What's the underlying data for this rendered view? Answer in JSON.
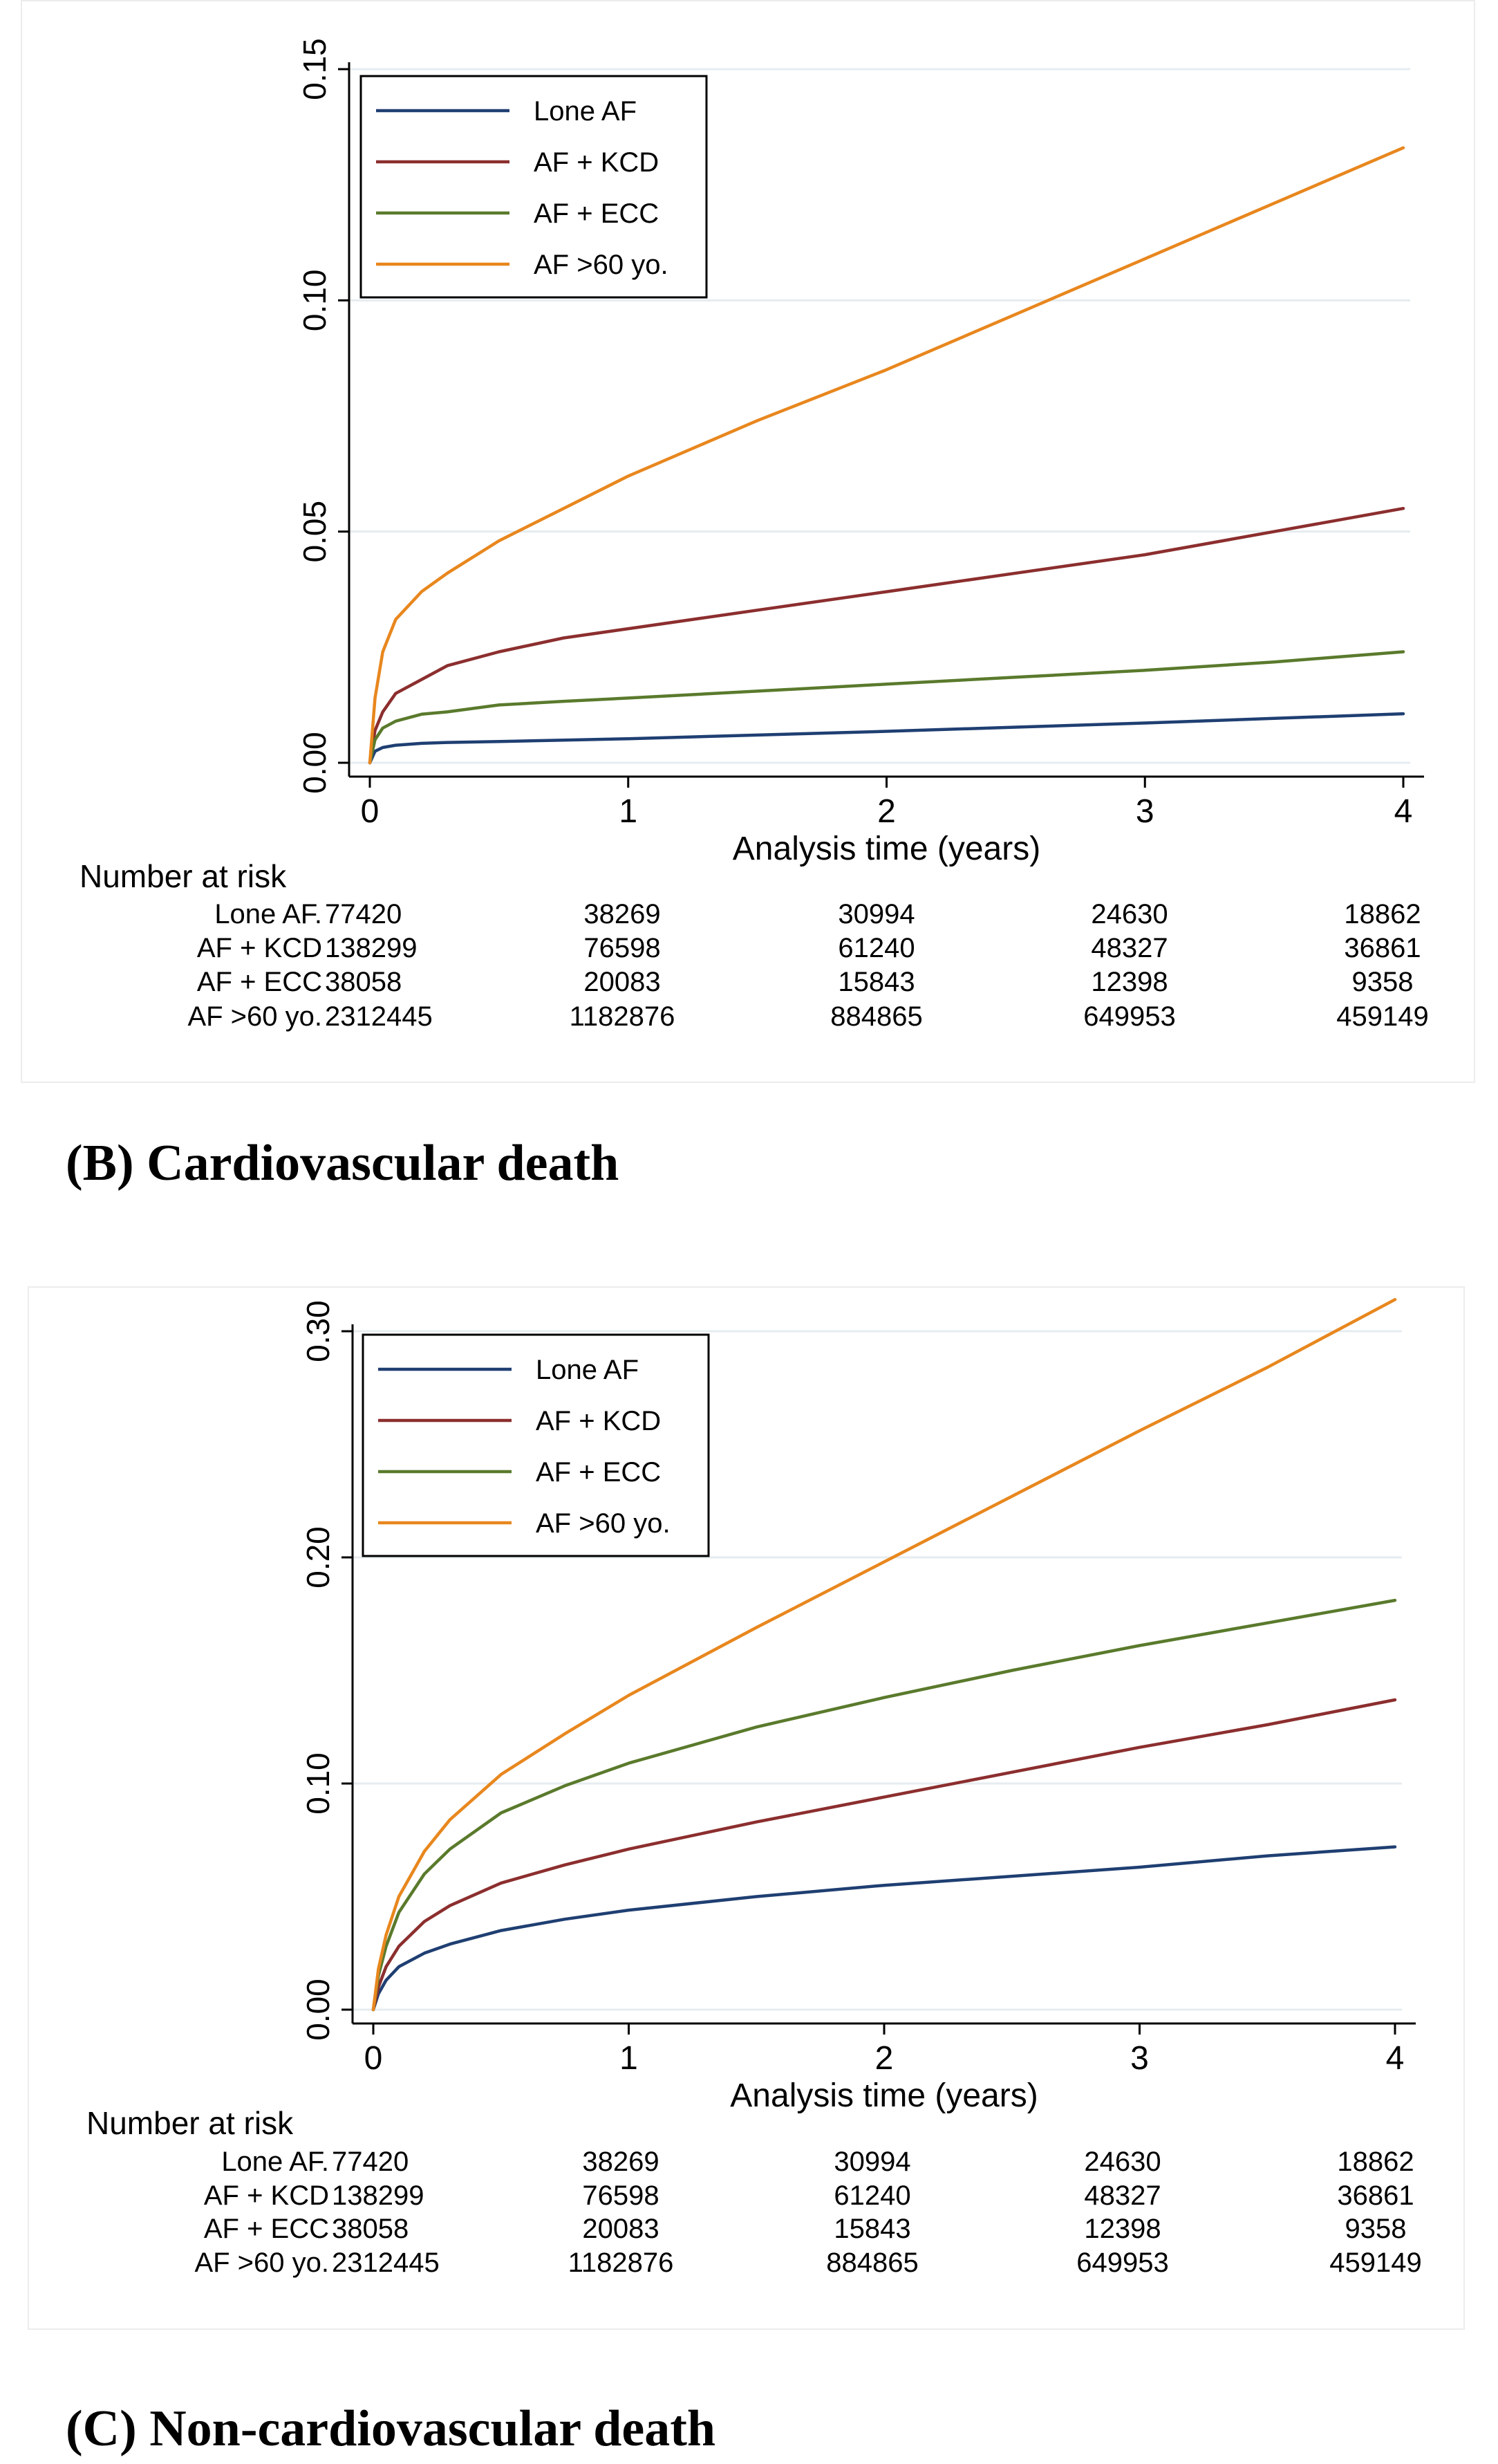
{
  "panels": [
    {
      "id": "cardiovascular",
      "caption": "(B) Cardiovascular death",
      "chart_data": {
        "type": "line",
        "title": "",
        "xlabel": "Analysis time (years)",
        "ylabel": "",
        "xlim": [
          0,
          4
        ],
        "ylim": [
          0,
          0.15
        ],
        "xticks": [
          0,
          1,
          2,
          3,
          4
        ],
        "xtick_labels": [
          "0",
          "1",
          "2",
          "3",
          "4"
        ],
        "yticks": [
          0,
          0.05,
          0.1,
          0.15
        ],
        "ytick_labels": [
          "0.00",
          "0.05",
          "0.10",
          "0.15"
        ],
        "grid": true,
        "legend": "top-left",
        "series": [
          {
            "name": "Lone AF",
            "color": "#1f3f72",
            "x": [
              0,
              0.02,
              0.05,
              0.1,
              0.2,
              0.3,
              0.5,
              0.75,
              1,
              1.5,
              2,
              2.5,
              3,
              3.5,
              4
            ],
            "values": [
              0,
              0.0025,
              0.0033,
              0.0038,
              0.0042,
              0.0044,
              0.0046,
              0.0049,
              0.0052,
              0.006,
              0.0068,
              0.0077,
              0.0086,
              0.0096,
              0.0106
            ]
          },
          {
            "name": "AF + KCD",
            "color": "#8c2e2e",
            "x": [
              0,
              0.02,
              0.05,
              0.1,
              0.2,
              0.3,
              0.5,
              0.75,
              1,
              1.5,
              2,
              2.5,
              3,
              3.5,
              4
            ],
            "values": [
              0,
              0.007,
              0.011,
              0.015,
              0.018,
              0.021,
              0.024,
              0.027,
              0.029,
              0.033,
              0.037,
              0.041,
              0.045,
              0.05,
              0.055
            ]
          },
          {
            "name": "AF + ECC",
            "color": "#5a7a2c",
            "x": [
              0,
              0.02,
              0.05,
              0.1,
              0.2,
              0.3,
              0.5,
              0.75,
              1,
              1.5,
              2,
              2.5,
              3,
              3.5,
              4
            ],
            "values": [
              0,
              0.005,
              0.0075,
              0.009,
              0.0105,
              0.011,
              0.0125,
              0.0133,
              0.014,
              0.0155,
              0.017,
              0.0185,
              0.02,
              0.0218,
              0.024
            ]
          },
          {
            "name": "AF >60 yo.",
            "color": "#e8871e",
            "x": [
              0,
              0.02,
              0.05,
              0.1,
              0.2,
              0.3,
              0.5,
              0.75,
              1,
              1.5,
              2,
              2.5,
              3,
              3.5,
              4
            ],
            "values": [
              0,
              0.014,
              0.024,
              0.031,
              0.037,
              0.041,
              0.048,
              0.055,
              0.062,
              0.074,
              0.085,
              0.097,
              0.109,
              0.121,
              0.133
            ]
          }
        ]
      },
      "risk_table": {
        "title": "Number at risk",
        "rows": [
          {
            "label": "Lone AF.",
            "values": [
              "77420",
              "38269",
              "30994",
              "24630",
              "18862"
            ]
          },
          {
            "label": "AF + KCD",
            "values": [
              "138299",
              "76598",
              "61240",
              "48327",
              "36861"
            ]
          },
          {
            "label": "AF + ECC",
            "values": [
              "38058",
              "20083",
              "15843",
              "12398",
              "9358"
            ]
          },
          {
            "label": "AF >60 yo.",
            "values": [
              "2312445",
              "1182876",
              "884865",
              "649953",
              "459149"
            ]
          }
        ]
      }
    },
    {
      "id": "noncardiovascular",
      "caption": "(C) Non-cardiovascular death",
      "chart_data": {
        "type": "line",
        "title": "",
        "xlabel": "Analysis time (years)",
        "ylabel": "",
        "xlim": [
          0,
          4
        ],
        "ylim": [
          0,
          0.3
        ],
        "xticks": [
          0,
          1,
          2,
          3,
          4
        ],
        "xtick_labels": [
          "0",
          "1",
          "2",
          "3",
          "4"
        ],
        "yticks": [
          0,
          0.1,
          0.2,
          0.3
        ],
        "ytick_labels": [
          "0.00",
          "0.10",
          "0.20",
          "0.30"
        ],
        "grid": true,
        "legend": "top-left",
        "series": [
          {
            "name": "Lone AF",
            "color": "#1f3f72",
            "x": [
              0,
              0.02,
              0.05,
              0.1,
              0.2,
              0.3,
              0.5,
              0.75,
              1,
              1.5,
              2,
              2.5,
              3,
              3.5,
              4
            ],
            "values": [
              0,
              0.007,
              0.013,
              0.019,
              0.025,
              0.029,
              0.035,
              0.04,
              0.044,
              0.05,
              0.055,
              0.059,
              0.063,
              0.068,
              0.072
            ]
          },
          {
            "name": "AF + KCD",
            "color": "#8c2e2e",
            "x": [
              0,
              0.02,
              0.05,
              0.1,
              0.2,
              0.3,
              0.5,
              0.75,
              1,
              1.5,
              2,
              2.5,
              3,
              3.5,
              4
            ],
            "values": [
              0,
              0.01,
              0.019,
              0.028,
              0.039,
              0.046,
              0.056,
              0.064,
              0.071,
              0.083,
              0.094,
              0.105,
              0.116,
              0.126,
              0.137
            ]
          },
          {
            "name": "AF + ECC",
            "color": "#5a7a2c",
            "x": [
              0,
              0.02,
              0.05,
              0.1,
              0.2,
              0.3,
              0.5,
              0.75,
              1,
              1.5,
              2,
              2.5,
              3,
              3.5,
              4
            ],
            "values": [
              0,
              0.015,
              0.028,
              0.043,
              0.06,
              0.071,
              0.087,
              0.099,
              0.109,
              0.125,
              0.138,
              0.15,
              0.161,
              0.171,
              0.181
            ]
          },
          {
            "name": "AF >60 yo.",
            "color": "#e8871e",
            "x": [
              0,
              0.02,
              0.05,
              0.1,
              0.2,
              0.3,
              0.5,
              0.75,
              1,
              1.5,
              2,
              2.5,
              3,
              3.5,
              4
            ],
            "values": [
              0,
              0.018,
              0.033,
              0.05,
              0.07,
              0.084,
              0.104,
              0.122,
              0.139,
              0.169,
              0.198,
              0.227,
              0.256,
              0.284,
              0.314
            ]
          }
        ]
      },
      "risk_table": {
        "title": "Number at risk",
        "rows": [
          {
            "label": "Lone AF.",
            "values": [
              "77420",
              "38269",
              "30994",
              "24630",
              "18862"
            ]
          },
          {
            "label": "AF + KCD",
            "values": [
              "138299",
              "76598",
              "61240",
              "48327",
              "36861"
            ]
          },
          {
            "label": "AF + ECC",
            "values": [
              "38058",
              "20083",
              "15843",
              "12398",
              "9358"
            ]
          },
          {
            "label": "AF >60 yo.",
            "values": [
              "2312445",
              "1182876",
              "884865",
              "649953",
              "459149"
            ]
          }
        ]
      }
    }
  ]
}
